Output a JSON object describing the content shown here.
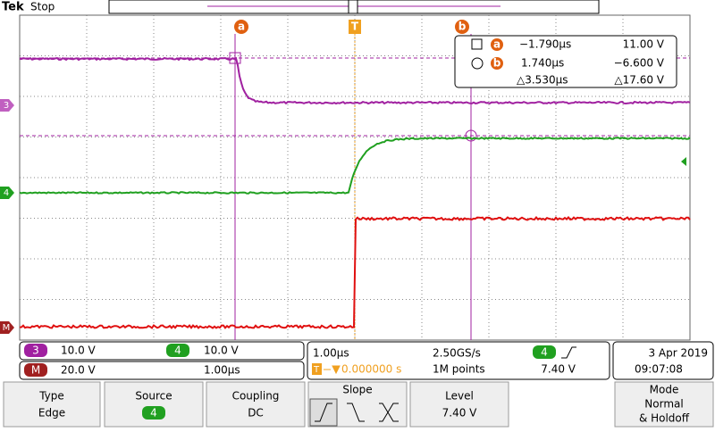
{
  "header": {
    "brand": "Tek",
    "status": "Stop"
  },
  "markers": {
    "cursor_a": "a",
    "cursor_b": "b",
    "trigger": "T"
  },
  "channels": {
    "ch3": "3",
    "ch4": "4",
    "math": "M"
  },
  "cursor_readout": {
    "rows": [
      {
        "cursor": "a",
        "time": "−1.790µs",
        "value": "11.00 V"
      },
      {
        "cursor": "b",
        "time": "1.740µs",
        "value": "−6.600 V"
      }
    ],
    "delta_time": "△3.530µs",
    "delta_value": "△17.60 V"
  },
  "status": {
    "ch3_label": "3",
    "ch3_scale": "10.0 V",
    "ch4_label": "4",
    "ch4_scale": "10.0 V",
    "math_label": "M",
    "math_scale": "20.0 V",
    "math_time": "1.00µs",
    "timebase": "1.00µs",
    "sample_rate": "2.50GS/s",
    "trigger_icon": "T",
    "trigger_position": "0.000000 s",
    "record_length": "1M points",
    "trigger_source": "4",
    "trigger_level": "7.40 V",
    "date": "3 Apr  2019",
    "time": "09:07:08"
  },
  "menu": [
    {
      "label": "Type",
      "value": "Edge"
    },
    {
      "label": "Source",
      "value": "4"
    },
    {
      "label": "Coupling",
      "value": "DC"
    },
    {
      "label": "Slope"
    },
    {
      "label": "Level",
      "value": "7.40 V"
    },
    {
      "label": "Mode",
      "value_lines": [
        "Normal",
        "& Holdoff"
      ]
    }
  ]
}
